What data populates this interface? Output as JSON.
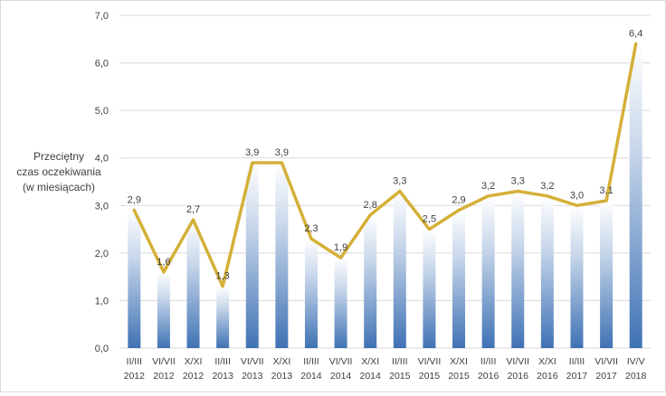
{
  "chart_data": {
    "type": "bar",
    "ylabel": [
      "Przeciętny",
      "czas oczekiwania",
      "(w miesiącach)"
    ],
    "ylim": [
      0,
      7
    ],
    "yticks": [
      "0,0",
      "1,0",
      "2,0",
      "3,0",
      "4,0",
      "5,0",
      "6,0",
      "7,0"
    ],
    "ytick_values": [
      0,
      1,
      2,
      3,
      4,
      5,
      6,
      7
    ],
    "grid": true,
    "categories": [
      {
        "period": "II/III",
        "year": "2012"
      },
      {
        "period": "VI/VII",
        "year": "2012"
      },
      {
        "period": "X/XI",
        "year": "2012"
      },
      {
        "period": "II/III",
        "year": "2013"
      },
      {
        "period": "VI/VII",
        "year": "2013"
      },
      {
        "period": "X/XI",
        "year": "2013"
      },
      {
        "period": "II/III",
        "year": "2014"
      },
      {
        "period": "VI/VII",
        "year": "2014"
      },
      {
        "period": "X/XI",
        "year": "2014"
      },
      {
        "period": "II/III",
        "year": "2015"
      },
      {
        "period": "VI/VII",
        "year": "2015"
      },
      {
        "period": "X/XI",
        "year": "2015"
      },
      {
        "period": "II/III",
        "year": "2016"
      },
      {
        "period": "VI/VII",
        "year": "2016"
      },
      {
        "period": "X/XI",
        "year": "2016"
      },
      {
        "period": "II/III",
        "year": "2017"
      },
      {
        "period": "VI/VII",
        "year": "2017"
      },
      {
        "period": "IV/V",
        "year": "2018"
      }
    ],
    "values": [
      2.9,
      1.6,
      2.7,
      1.3,
      3.9,
      3.9,
      2.3,
      1.9,
      2.8,
      3.3,
      2.5,
      2.9,
      3.2,
      3.3,
      3.2,
      3.0,
      3.1,
      6.4
    ],
    "value_labels": [
      "2,9",
      "1,6",
      "2,7",
      "1,3",
      "3,9",
      "3,9",
      "2,3",
      "1,9",
      "2,8",
      "3,3",
      "2,5",
      "2,9",
      "3,2",
      "3,3",
      "3,2",
      "3,0",
      "3,1",
      "6,4"
    ],
    "overlay_line": true,
    "colors": {
      "bar_top": "#ffffff",
      "bar_bottom": "#3f72b4",
      "line": "#d4b038",
      "grid": "#d9d9d9",
      "text": "#404040"
    }
  }
}
